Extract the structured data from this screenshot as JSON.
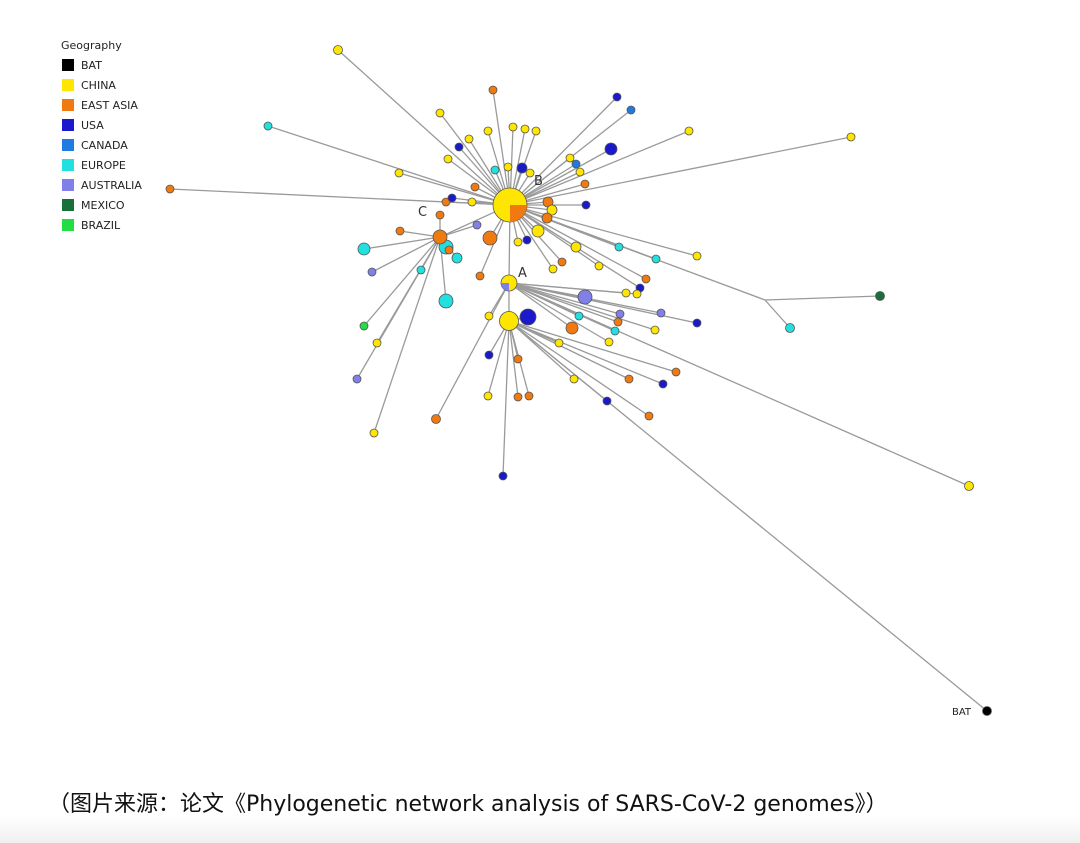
{
  "legend": {
    "title": "Geography",
    "items": [
      {
        "key": "BAT",
        "label": "BAT",
        "color": "#000000"
      },
      {
        "key": "CHINA",
        "label": "CHINA",
        "color": "#FFE600"
      },
      {
        "key": "EAST_ASIA",
        "label": "EAST ASIA",
        "color": "#F07A10"
      },
      {
        "key": "USA",
        "label": "USA",
        "color": "#1A1ACC"
      },
      {
        "key": "CANADA",
        "label": "CANADA",
        "color": "#1E7BE0"
      },
      {
        "key": "EUROPE",
        "label": "EUROPE",
        "color": "#22E0E0"
      },
      {
        "key": "AUSTRALIA",
        "label": "AUSTRALIA",
        "color": "#8080E8"
      },
      {
        "key": "MEXICO",
        "label": "MEXICO",
        "color": "#17703A"
      },
      {
        "key": "BRAZIL",
        "label": "BRAZIL",
        "color": "#22DD44"
      }
    ]
  },
  "network": {
    "cluster_labels": [
      "A",
      "B",
      "C"
    ],
    "outgroup_label": "BAT"
  },
  "caption": "（图片来源：论文《Phylogenetic network analysis of SARS-CoV-2 genomes》）"
}
